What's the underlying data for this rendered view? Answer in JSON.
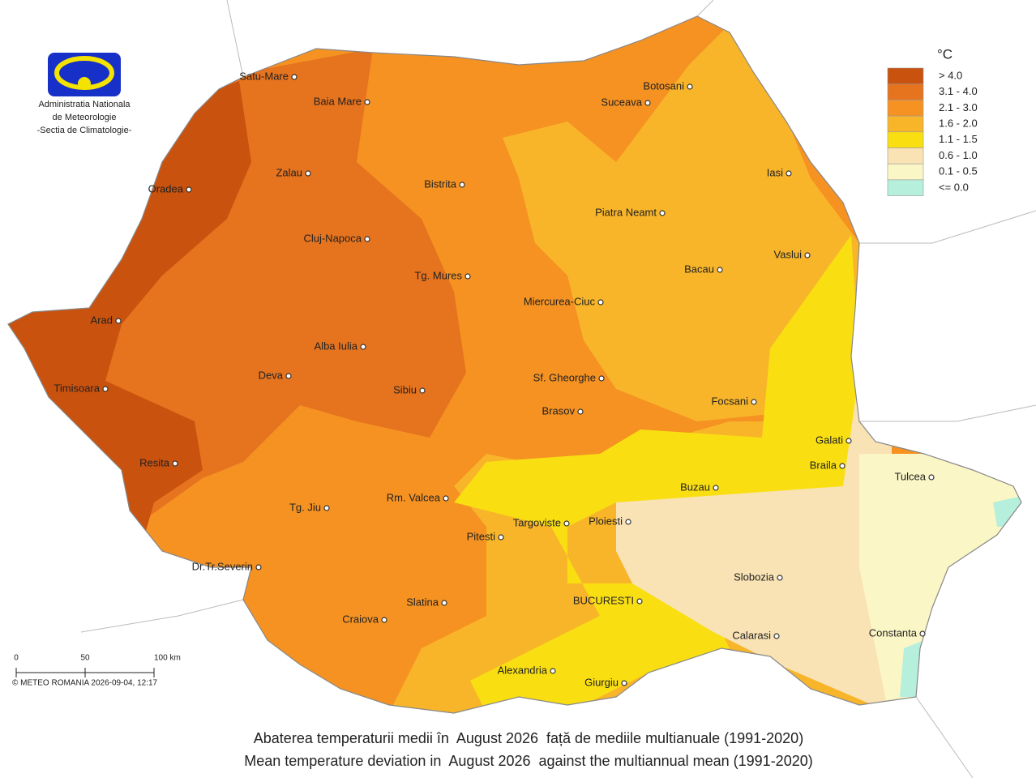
{
  "logo": {
    "lines": [
      "Administratia Nationala",
      "de Meteorologie",
      "-Sectia de Climatologie-"
    ]
  },
  "legend": {
    "unit": "°C",
    "items": [
      {
        "label": "> 4.0",
        "color": "#c9520e"
      },
      {
        "label": "3.1 - 4.0",
        "color": "#e6731e"
      },
      {
        "label": "2.1 - 3.0",
        "color": "#f59222"
      },
      {
        "label": "1.6 - 2.0",
        "color": "#f8b52a"
      },
      {
        "label": "1.1 - 1.5",
        "color": "#f9df12"
      },
      {
        "label": "0.6 - 1.0",
        "color": "#f9e2b4"
      },
      {
        "label": "0.1 - 0.5",
        "color": "#fbf6c5"
      },
      {
        "label": "<= 0.0",
        "color": "#b6efdc"
      }
    ]
  },
  "cities": [
    "Satu-Mare",
    "Baia Mare",
    "Botosani",
    "Suceava",
    "Oradea",
    "Zalau",
    "Bistrita",
    "Iasi",
    "Piatra Neamt",
    "Cluj-Napoca",
    "Vaslui",
    "Tg. Mures",
    "Bacau",
    "Miercurea-Ciuc",
    "Arad",
    "Alba Iulia",
    "Deva",
    "Sf. Gheorghe",
    "Timisoara",
    "Sibiu",
    "Focsani",
    "Brasov",
    "Galati",
    "Resita",
    "Braila",
    "Tulcea",
    "Buzau",
    "Rm. Valcea",
    "Tg. Jiu",
    "Targoviste",
    "Ploiesti",
    "Pitesti",
    "Dr.Tr.Severin",
    "Slobozia",
    "Slatina",
    "BUCURESTI",
    "Craiova",
    "Calarasi",
    "Constanta",
    "Alexandria",
    "Giurgiu"
  ],
  "scale_bar": {
    "labels": [
      "0",
      "50",
      "100 km"
    ]
  },
  "copyright": "© METEO ROMANIA 2026-09-04, 12:17",
  "caption": [
    "Abaterea temperaturii medii în  August 2026  față de mediile multianuale (1991-2020)",
    "Mean temperature deviation in  August 2026  against the multiannual mean (1991-2020)"
  ]
}
